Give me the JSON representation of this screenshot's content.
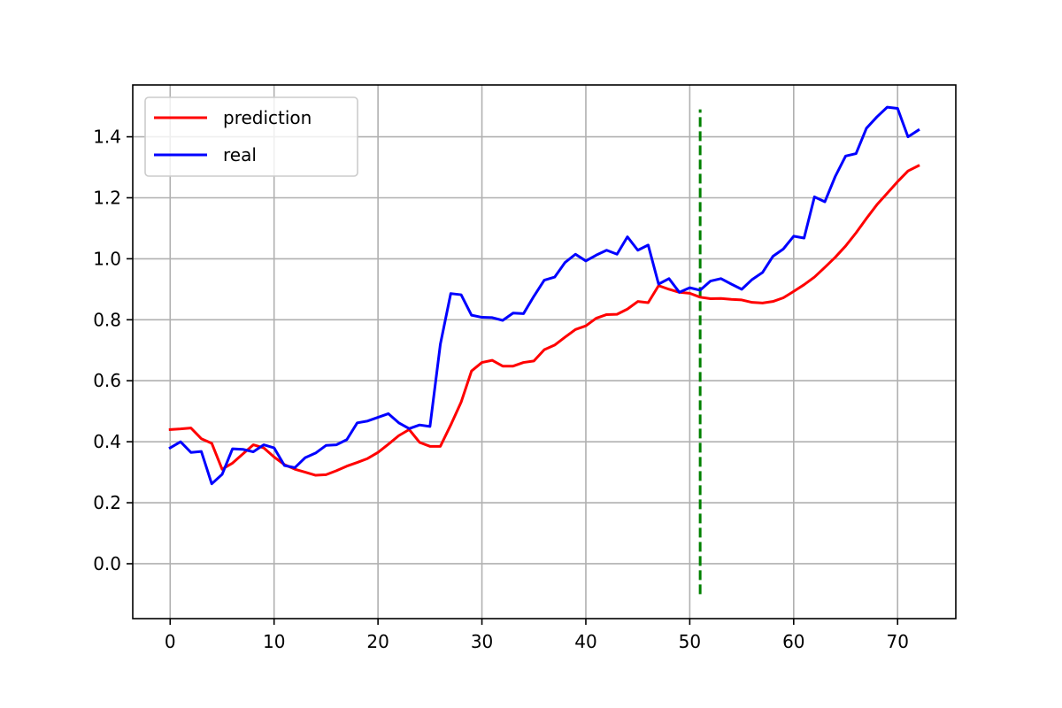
{
  "chart_data": {
    "type": "line",
    "title": "",
    "xlabel": "",
    "ylabel": "",
    "xlim": [
      -3.6,
      75.6
    ],
    "ylim": [
      -0.18,
      1.57
    ],
    "grid": true,
    "legend_position": "top-left",
    "xticks": [
      0,
      10,
      20,
      30,
      40,
      50,
      60,
      70
    ],
    "xtick_labels": [
      "0",
      "10",
      "20",
      "30",
      "40",
      "50",
      "60",
      "70"
    ],
    "yticks": [
      0.0,
      0.2,
      0.4,
      0.6,
      0.8,
      1.0,
      1.2,
      1.4
    ],
    "ytick_labels": [
      "0.0",
      "0.2",
      "0.4",
      "0.6",
      "0.8",
      "1.0",
      "1.2",
      "1.4"
    ],
    "series": [
      {
        "name": "prediction",
        "color": "#ff0000",
        "x": [
          0,
          1,
          2,
          3,
          4,
          5,
          6,
          7,
          8,
          9,
          10,
          11,
          12,
          13,
          14,
          15,
          16,
          17,
          18,
          19,
          20,
          21,
          22,
          23,
          24,
          25,
          26,
          27,
          28,
          29,
          30,
          31,
          32,
          33,
          34,
          35,
          36,
          37,
          38,
          39,
          40,
          41,
          42,
          43,
          44,
          45,
          46,
          47,
          48,
          49,
          50,
          51,
          52,
          53,
          54,
          55,
          56,
          57,
          58,
          59,
          60,
          61,
          62,
          63,
          64,
          65,
          66,
          67,
          68,
          69,
          70,
          71,
          72
        ],
        "y": [
          0.44,
          0.442,
          0.445,
          0.41,
          0.395,
          0.31,
          0.33,
          0.36,
          0.39,
          0.38,
          0.35,
          0.325,
          0.31,
          0.3,
          0.29,
          0.292,
          0.305,
          0.32,
          0.332,
          0.345,
          0.365,
          0.392,
          0.42,
          0.44,
          0.398,
          0.385,
          0.385,
          0.455,
          0.53,
          0.632,
          0.66,
          0.667,
          0.648,
          0.648,
          0.66,
          0.665,
          0.702,
          0.717,
          0.743,
          0.768,
          0.78,
          0.805,
          0.817,
          0.818,
          0.835,
          0.86,
          0.856,
          0.912,
          0.9,
          0.89,
          0.887,
          0.874,
          0.869,
          0.87,
          0.867,
          0.865,
          0.857,
          0.855,
          0.86,
          0.872,
          0.893,
          0.915,
          0.94,
          0.972,
          1.005,
          1.042,
          1.085,
          1.132,
          1.177,
          1.215,
          1.253,
          1.288,
          1.305
        ]
      },
      {
        "name": "real",
        "color": "#0000ff",
        "x": [
          0,
          1,
          2,
          3,
          4,
          5,
          6,
          7,
          8,
          9,
          10,
          11,
          12,
          13,
          14,
          15,
          16,
          17,
          18,
          19,
          20,
          21,
          22,
          23,
          24,
          25,
          26,
          27,
          28,
          29,
          30,
          31,
          32,
          33,
          34,
          35,
          36,
          37,
          38,
          39,
          40,
          41,
          42,
          43,
          44,
          45,
          46,
          47,
          48,
          49,
          50,
          51,
          52,
          53,
          54,
          55,
          56,
          57,
          58,
          59,
          60,
          61,
          62,
          63,
          64,
          65,
          66,
          67,
          68,
          69,
          70,
          71,
          72
        ],
        "y": [
          0.38,
          0.4,
          0.365,
          0.368,
          0.262,
          0.293,
          0.377,
          0.375,
          0.367,
          0.39,
          0.38,
          0.322,
          0.315,
          0.348,
          0.363,
          0.388,
          0.39,
          0.407,
          0.462,
          0.468,
          0.48,
          0.492,
          0.462,
          0.443,
          0.455,
          0.45,
          0.72,
          0.886,
          0.882,
          0.815,
          0.808,
          0.807,
          0.798,
          0.822,
          0.82,
          0.877,
          0.93,
          0.94,
          0.988,
          1.015,
          0.993,
          1.012,
          1.028,
          1.015,
          1.072,
          1.028,
          1.045,
          0.917,
          0.935,
          0.89,
          0.905,
          0.897,
          0.927,
          0.935,
          0.917,
          0.9,
          0.932,
          0.955,
          1.008,
          1.032,
          1.074,
          1.068,
          1.203,
          1.187,
          1.27,
          1.337,
          1.345,
          1.428,
          1.465,
          1.497,
          1.493,
          1.4,
          1.422
        ]
      }
    ],
    "annotations": [
      {
        "type": "vline",
        "x": 51,
        "y_range": [
          -0.1,
          1.49
        ],
        "color": "#008000",
        "style": "dashed"
      }
    ]
  }
}
